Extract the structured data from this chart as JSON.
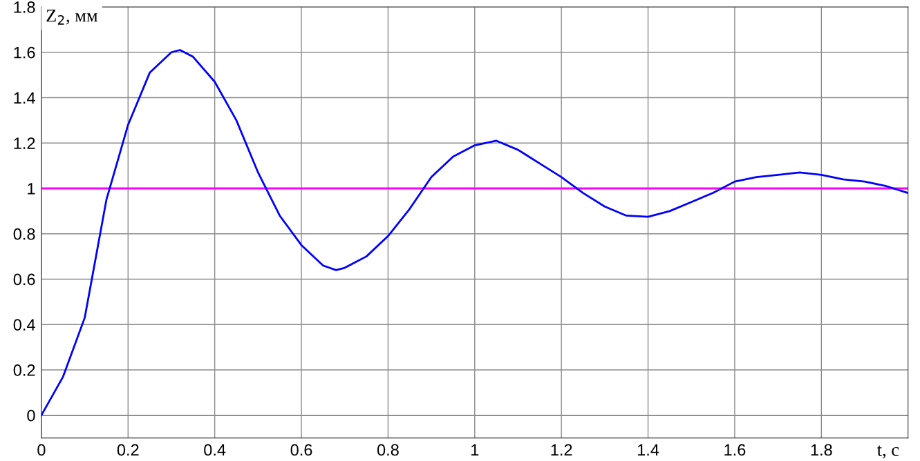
{
  "chart_data": {
    "type": "line",
    "xlabel": "t, с",
    "ylabel": "Z$_{2}$, мм",
    "xlim": [
      0,
      2
    ],
    "ylim": [
      -0.1,
      1.8
    ],
    "xticks": [
      0,
      0.2,
      0.4,
      0.6,
      0.8,
      1,
      1.2,
      1.4,
      1.6,
      1.8
    ],
    "yticks": [
      0,
      0.2,
      0.4,
      0.6,
      0.8,
      1,
      1.2,
      1.4,
      1.6,
      1.8
    ],
    "grid": true,
    "marker": "none",
    "line_style": "solid",
    "ref_lines": [
      {
        "axis": "y",
        "value": 1,
        "color": "#ff00ff"
      }
    ],
    "series": [
      {
        "color": "#0000ff",
        "x": [
          0,
          0.05,
          0.1,
          0.15,
          0.2,
          0.25,
          0.3,
          0.32,
          0.35,
          0.4,
          0.45,
          0.5,
          0.55,
          0.6,
          0.65,
          0.68,
          0.7,
          0.75,
          0.8,
          0.85,
          0.9,
          0.95,
          1,
          1.05,
          1.1,
          1.15,
          1.2,
          1.25,
          1.3,
          1.35,
          1.4,
          1.45,
          1.5,
          1.55,
          1.6,
          1.65,
          1.7,
          1.75,
          1.8,
          1.85,
          1.9,
          1.95,
          2
        ],
        "values": [
          0,
          0.17,
          0.43,
          0.95,
          1.28,
          1.51,
          1.6,
          1.61,
          1.58,
          1.47,
          1.3,
          1.07,
          0.88,
          0.75,
          0.66,
          0.64,
          0.65,
          0.7,
          0.79,
          0.91,
          1.05,
          1.14,
          1.19,
          1.21,
          1.17,
          1.11,
          1.05,
          0.98,
          0.92,
          0.88,
          0.875,
          0.9,
          0.94,
          0.98,
          1.03,
          1.05,
          1.06,
          1.07,
          1.06,
          1.04,
          1.03,
          1.01,
          0.98
        ]
      }
    ]
  }
}
